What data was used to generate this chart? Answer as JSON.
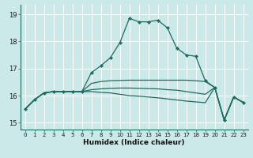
{
  "xlabel": "Humidex (Indice chaleur)",
  "xlim": [
    -0.5,
    23.5
  ],
  "ylim": [
    14.75,
    19.35
  ],
  "yticks": [
    15,
    16,
    17,
    18,
    19
  ],
  "xticks": [
    0,
    1,
    2,
    3,
    4,
    5,
    6,
    7,
    8,
    9,
    10,
    11,
    12,
    13,
    14,
    15,
    16,
    17,
    18,
    19,
    20,
    21,
    22,
    23
  ],
  "background_color": "#cce9e9",
  "grid_color": "#ffffff",
  "line_color": "#1e6b5e",
  "curves": [
    {
      "x": [
        0,
        1,
        2,
        3,
        4,
        5,
        6,
        7,
        8,
        9,
        10,
        11,
        12,
        13,
        14,
        15,
        16,
        17,
        18,
        19,
        20,
        21,
        22,
        23
      ],
      "y": [
        15.5,
        15.85,
        16.1,
        16.15,
        16.15,
        16.15,
        16.15,
        16.85,
        17.1,
        17.4,
        17.95,
        18.85,
        18.72,
        18.72,
        18.78,
        18.5,
        17.75,
        17.5,
        17.45,
        16.55,
        16.3,
        15.1,
        15.95,
        15.75
      ],
      "markers": true
    },
    {
      "x": [
        0,
        1,
        2,
        3,
        4,
        5,
        6,
        7,
        8,
        9,
        10,
        11,
        12,
        13,
        14,
        15,
        16,
        17,
        18,
        19,
        20,
        21,
        22,
        23
      ],
      "y": [
        15.5,
        15.85,
        16.1,
        16.15,
        16.15,
        16.15,
        16.15,
        16.45,
        16.52,
        16.55,
        16.56,
        16.57,
        16.57,
        16.57,
        16.57,
        16.57,
        16.57,
        16.57,
        16.55,
        16.52,
        16.3,
        15.1,
        15.95,
        15.75
      ],
      "markers": false
    },
    {
      "x": [
        0,
        1,
        2,
        3,
        4,
        5,
        6,
        7,
        8,
        9,
        10,
        11,
        12,
        13,
        14,
        15,
        16,
        17,
        18,
        19,
        20,
        21,
        22,
        23
      ],
      "y": [
        15.5,
        15.85,
        16.1,
        16.15,
        16.15,
        16.15,
        16.15,
        16.22,
        16.25,
        16.27,
        16.28,
        16.28,
        16.27,
        16.26,
        16.25,
        16.22,
        16.2,
        16.15,
        16.1,
        16.05,
        16.3,
        15.1,
        15.95,
        15.75
      ],
      "markers": false
    },
    {
      "x": [
        0,
        1,
        2,
        3,
        4,
        5,
        6,
        7,
        8,
        9,
        10,
        11,
        12,
        13,
        14,
        15,
        16,
        17,
        18,
        19,
        20,
        21,
        22,
        23
      ],
      "y": [
        15.5,
        15.85,
        16.1,
        16.15,
        16.15,
        16.15,
        16.15,
        16.15,
        16.12,
        16.1,
        16.05,
        16.0,
        15.98,
        15.95,
        15.92,
        15.88,
        15.84,
        15.8,
        15.77,
        15.74,
        16.3,
        15.1,
        15.95,
        15.75
      ],
      "markers": false
    }
  ]
}
